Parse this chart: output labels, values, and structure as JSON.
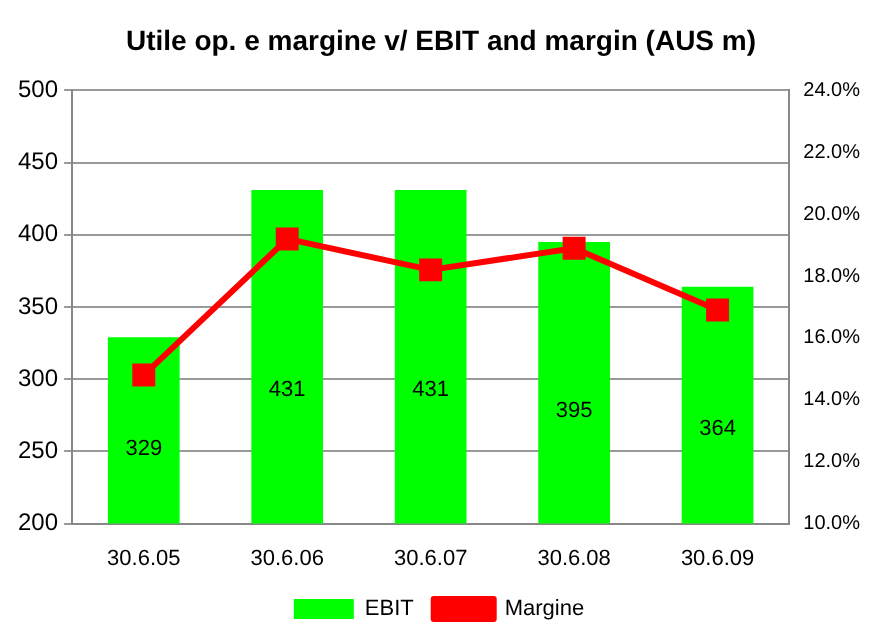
{
  "chart_data": {
    "type": "bar",
    "title": "Utile op. e margine v/ EBIT  and margin (AUS m)",
    "categories": [
      "30.6.05",
      "30.6.06",
      "30.6.07",
      "30.6.08",
      "30.6.09"
    ],
    "series": [
      {
        "name": "EBIT",
        "color": "#00ff00",
        "values": [
          329,
          431,
          431,
          395,
          364
        ],
        "value_labels": [
          "329",
          "431",
          "431",
          "395",
          "364"
        ]
      },
      {
        "name": "Margine",
        "type": "line",
        "axis": "y2",
        "color": "#ff0000",
        "values": [
          14.8,
          19.2,
          18.2,
          18.9,
          16.9
        ],
        "marker": "square",
        "line_style": "solid"
      }
    ],
    "ylim": [
      200,
      500
    ],
    "yticks": [
      200,
      250,
      300,
      350,
      400,
      450,
      500
    ],
    "y2lim": [
      10,
      24
    ],
    "y2ticks": [
      {
        "value": 10,
        "label": "10.0%"
      },
      {
        "value": 12,
        "label": "12.0%"
      },
      {
        "value": 14,
        "label": "14.0%"
      },
      {
        "value": 16,
        "label": "16.0%"
      },
      {
        "value": 18,
        "label": "18.0%"
      },
      {
        "value": 20,
        "label": "20.0%"
      },
      {
        "value": 22,
        "label": "22.0%"
      },
      {
        "value": 24,
        "label": "24.0%"
      }
    ],
    "grid": "y",
    "legend": "bottom"
  }
}
